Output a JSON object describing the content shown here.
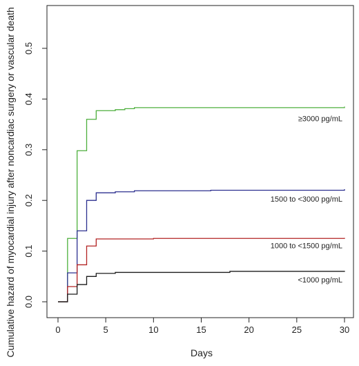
{
  "chart_data": {
    "type": "line",
    "step": true,
    "title": "",
    "xlabel": "Days",
    "ylabel": "Cumulative hazard of myocardial injury after noncardiac surgery or vascular death",
    "xlim": [
      0,
      30
    ],
    "ylim": [
      0,
      0.5
    ],
    "xticks": [
      0,
      5,
      10,
      15,
      20,
      25,
      30
    ],
    "yticks": [
      0.0,
      0.1,
      0.2,
      0.3,
      0.4,
      0.5
    ],
    "xtick_labels": [
      "0",
      "5",
      "10",
      "15",
      "20",
      "25",
      "30"
    ],
    "ytick_labels": [
      "0.0",
      "0.1",
      "0.2",
      "0.3",
      "0.4",
      "0.5"
    ],
    "grid": false,
    "legend": "inline labels at right of each curve",
    "series": [
      {
        "name": "≥3000 pg/mL",
        "color": "#4daf3c",
        "points": [
          [
            0,
            0
          ],
          [
            1,
            0.125
          ],
          [
            2,
            0.298
          ],
          [
            3,
            0.36
          ],
          [
            4,
            0.377
          ],
          [
            6,
            0.379
          ],
          [
            7,
            0.381
          ],
          [
            8,
            0.383
          ],
          [
            30,
            0.385
          ]
        ]
      },
      {
        "name": "1500 to <3000 pg/mL",
        "color": "#2b2f8f",
        "points": [
          [
            0,
            0
          ],
          [
            1,
            0.057
          ],
          [
            2,
            0.14
          ],
          [
            3,
            0.2
          ],
          [
            4,
            0.215
          ],
          [
            6,
            0.217
          ],
          [
            8,
            0.219
          ],
          [
            16,
            0.22
          ],
          [
            30,
            0.222
          ]
        ]
      },
      {
        "name": "1000 to <1500 pg/mL",
        "color": "#b22222",
        "points": [
          [
            0,
            0
          ],
          [
            1,
            0.03
          ],
          [
            2,
            0.073
          ],
          [
            3,
            0.11
          ],
          [
            4,
            0.124
          ],
          [
            10,
            0.125
          ],
          [
            30,
            0.126
          ]
        ]
      },
      {
        "name": "<1000 pg/mL",
        "color": "#1a1a1a",
        "points": [
          [
            0,
            0
          ],
          [
            1,
            0.015
          ],
          [
            2,
            0.034
          ],
          [
            3,
            0.05
          ],
          [
            4,
            0.056
          ],
          [
            6,
            0.058
          ],
          [
            18,
            0.06
          ],
          [
            30,
            0.061
          ]
        ]
      }
    ]
  }
}
